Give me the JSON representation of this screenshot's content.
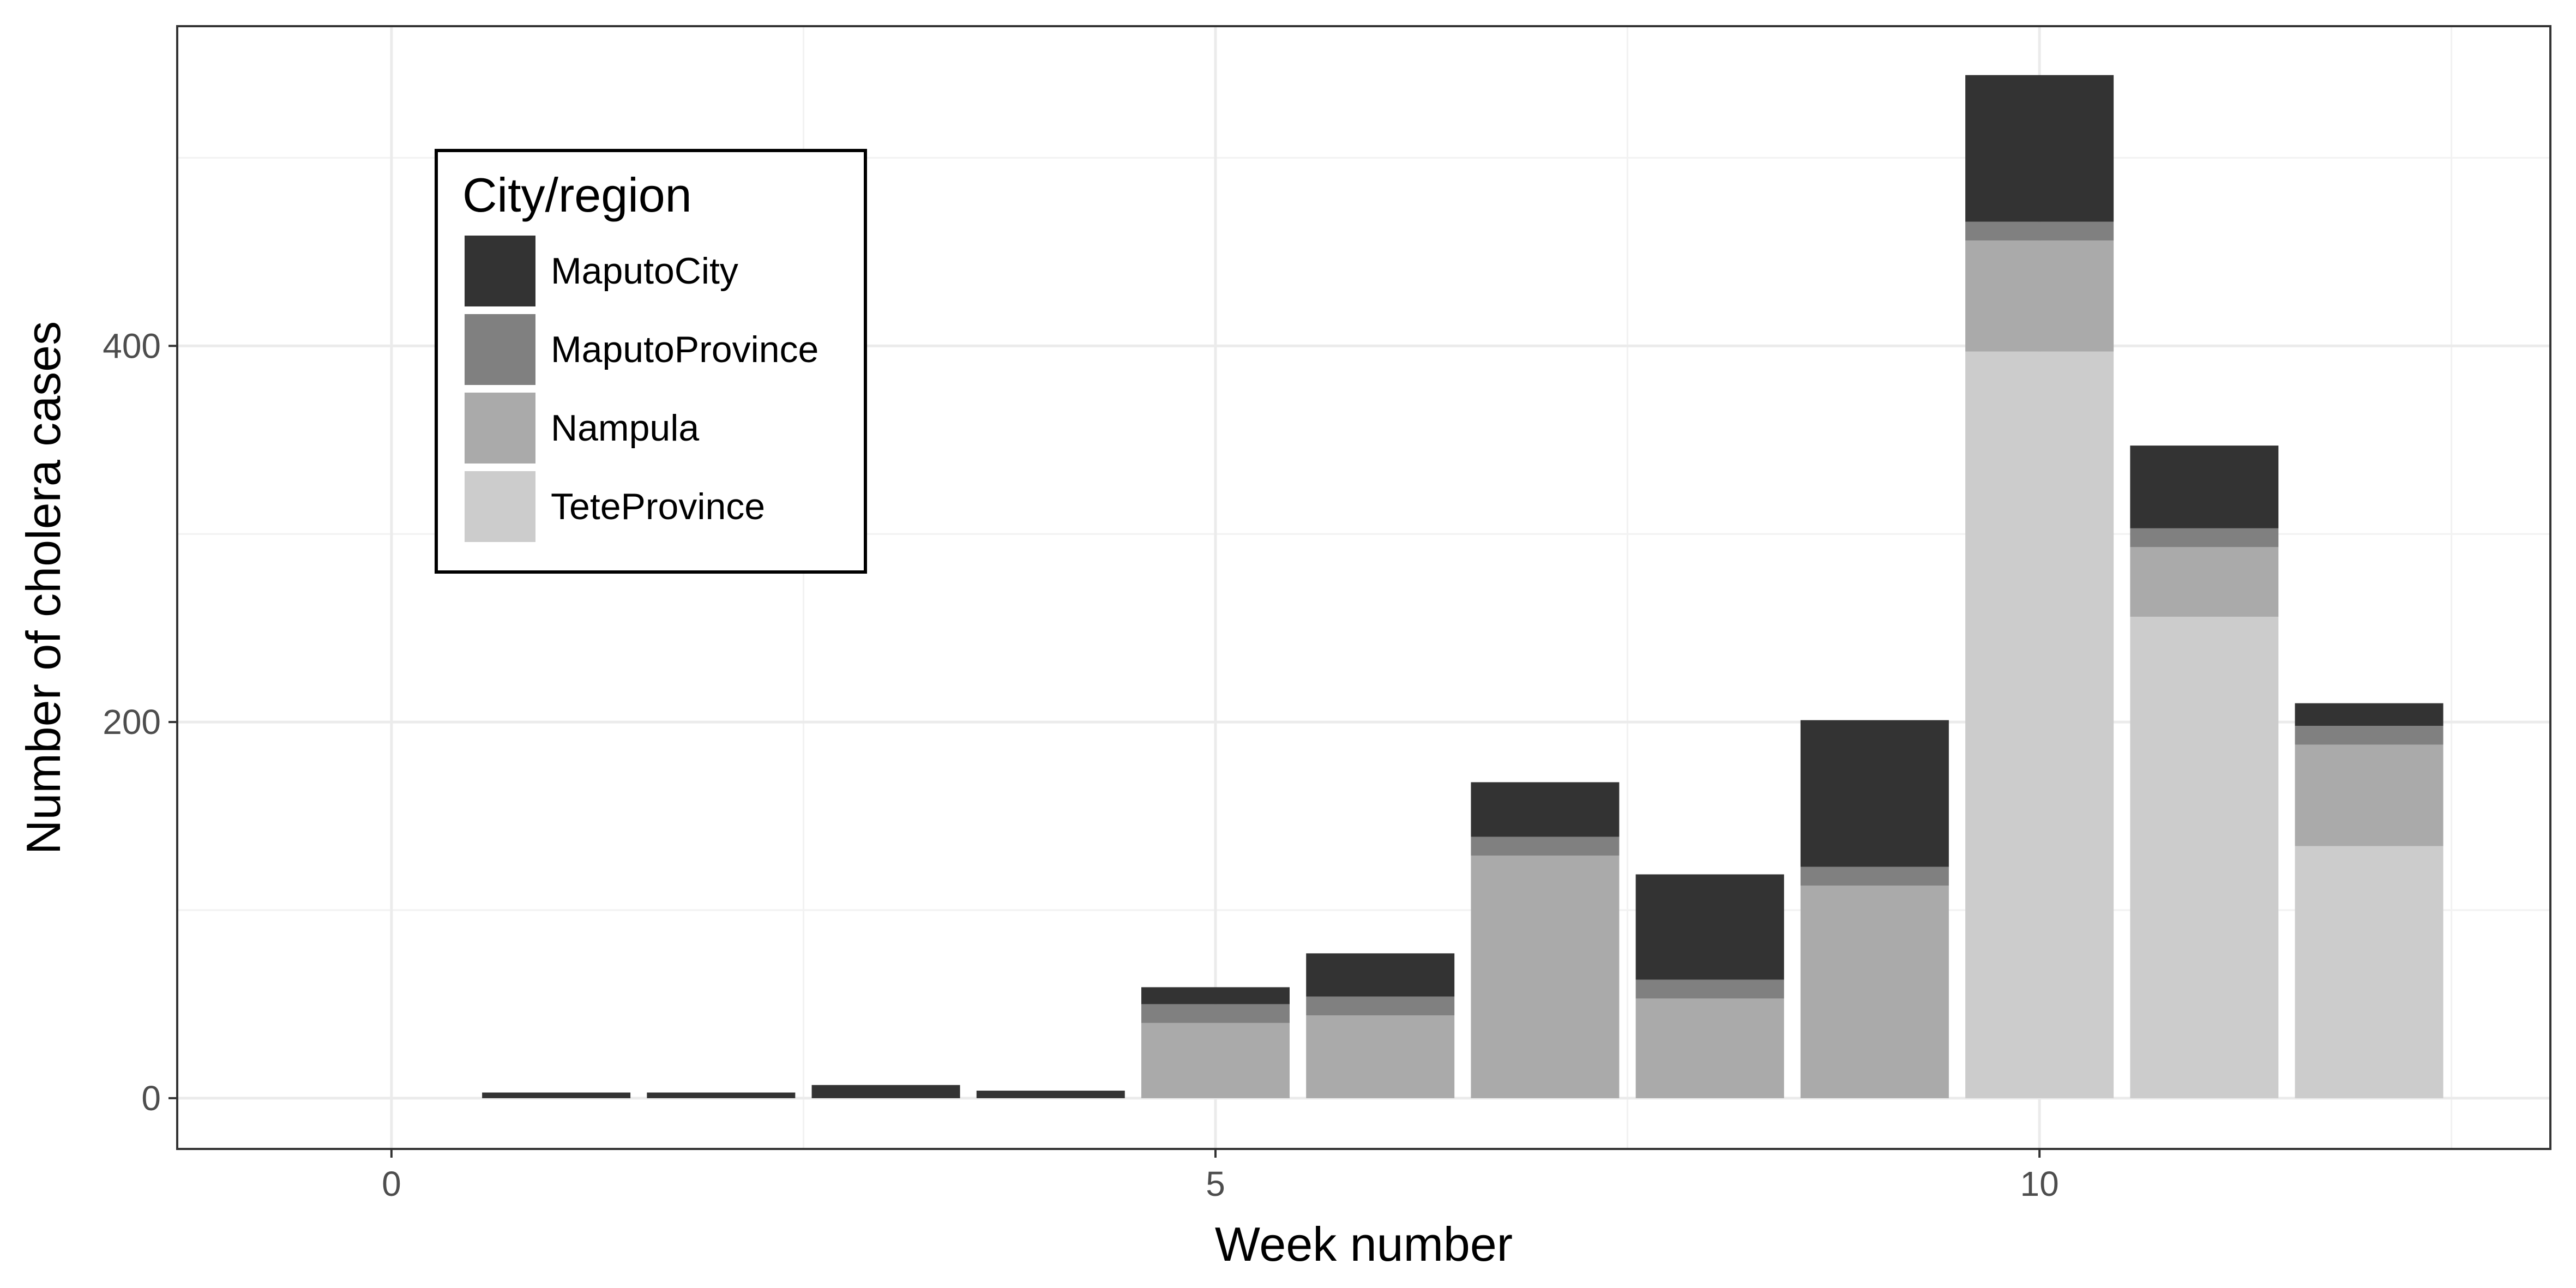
{
  "chart_data": {
    "type": "bar",
    "stacked": true,
    "xlabel": "Week number",
    "ylabel": "Number of cholera cases",
    "xlim": [
      -1.3,
      13.1
    ],
    "ylim": [
      -27,
      570
    ],
    "x_ticks": [
      0,
      5,
      10
    ],
    "y_ticks": [
      0,
      200,
      400
    ],
    "grid": true,
    "legend": {
      "title": "City/region",
      "position": "top-left inside"
    },
    "x": [
      1,
      2,
      3,
      4,
      5,
      6,
      7,
      8,
      9,
      10,
      11,
      12
    ],
    "series": [
      {
        "name": "TeteProvince",
        "color": "#cccccc",
        "values": [
          0,
          0,
          0,
          0,
          0,
          0,
          0,
          0,
          0,
          397,
          256,
          134
        ]
      },
      {
        "name": "Nampula",
        "color": "#aaaaaa",
        "values": [
          0,
          0,
          0,
          0,
          40,
          44,
          129,
          53,
          113,
          59,
          37,
          54
        ]
      },
      {
        "name": "MaputoProvince",
        "color": "#808080",
        "values": [
          0,
          0,
          0,
          0,
          10,
          10,
          10,
          10,
          10,
          10,
          10,
          10
        ]
      },
      {
        "name": "MaputoCity",
        "color": "#333333",
        "values": [
          3,
          3,
          7,
          4,
          9,
          23,
          29,
          56,
          78,
          78,
          44,
          12
        ]
      }
    ]
  }
}
